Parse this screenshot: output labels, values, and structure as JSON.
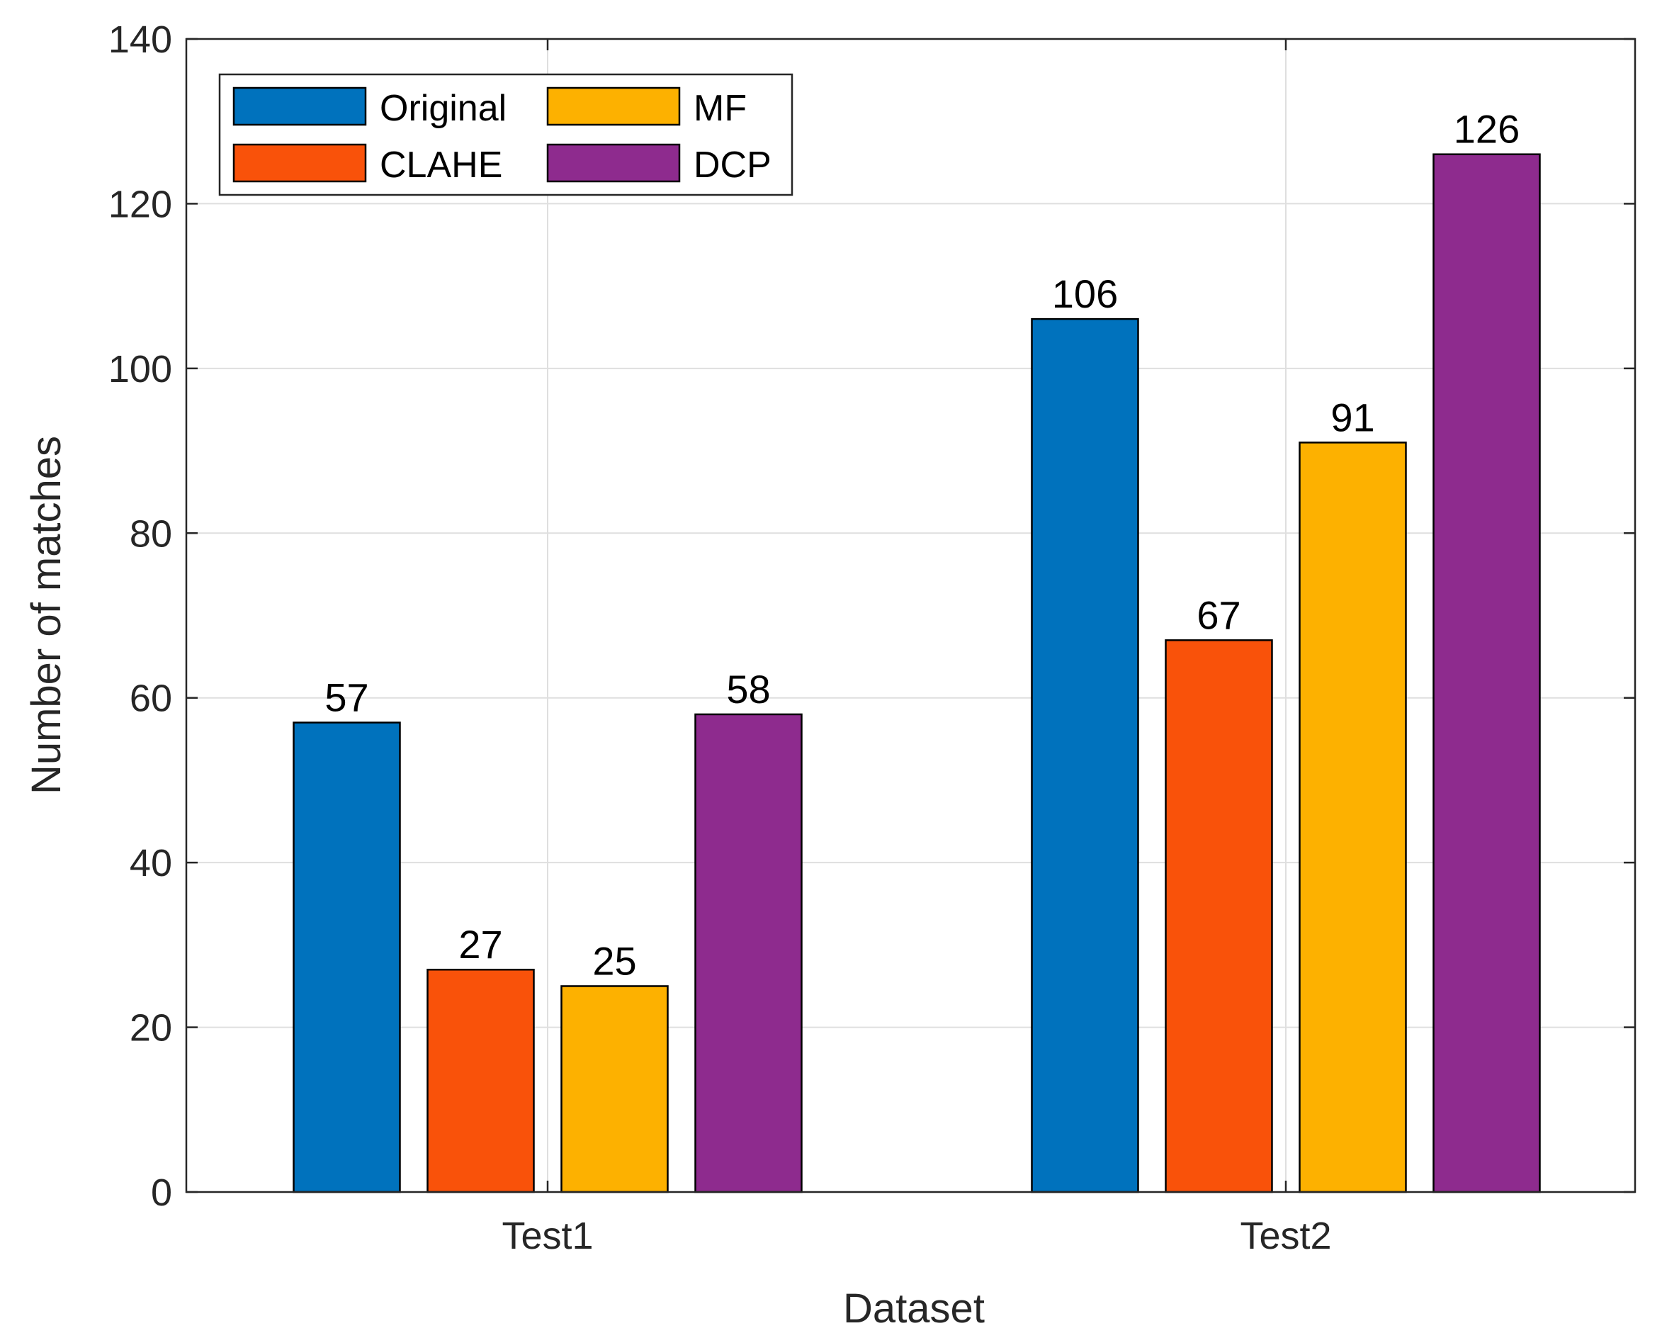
{
  "chart_data": {
    "type": "bar",
    "title": "",
    "xlabel": "Dataset",
    "ylabel": "Number of matches",
    "categories": [
      "Test1",
      "Test2"
    ],
    "ylim": [
      0,
      140
    ],
    "yticks": [
      0,
      20,
      40,
      60,
      80,
      100,
      120,
      140
    ],
    "ytick_labels": [
      "0",
      "20",
      "40",
      "60",
      "80",
      "100",
      "120",
      "140"
    ],
    "grid": true,
    "legend_position": "top-left",
    "legend_columns": 2,
    "series": [
      {
        "name": "Original",
        "color": "#0072BD",
        "values": [
          57,
          106
        ],
        "labels": [
          "57",
          "106"
        ]
      },
      {
        "name": "CLAHE",
        "color": "#F9520A",
        "values": [
          27,
          67
        ],
        "labels": [
          "27",
          "67"
        ]
      },
      {
        "name": "MF",
        "color": "#FDB100",
        "values": [
          25,
          91
        ],
        "labels": [
          "25",
          "91"
        ]
      },
      {
        "name": "DCP",
        "color": "#8E2B8E",
        "values": [
          58,
          126
        ],
        "labels": [
          "58",
          "126"
        ]
      }
    ]
  }
}
